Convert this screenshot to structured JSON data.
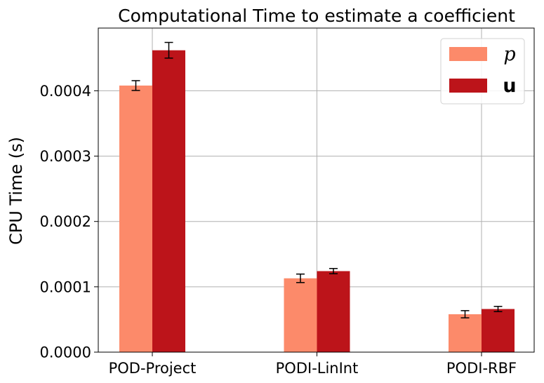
{
  "chart_data": {
    "type": "bar",
    "title": "Computational Time to estimate a coefficient",
    "xlabel": "",
    "ylabel": "CPU Time (s)",
    "categories": [
      "POD-Project",
      "PODI-LinInt",
      "PODI-RBF"
    ],
    "series": [
      {
        "name": "p",
        "color": "#fc8a6a",
        "values": [
          0.000408,
          0.000113,
          5.8e-05
        ],
        "errors": [
          7.5e-06,
          6.5e-06,
          5.5e-06
        ]
      },
      {
        "name": "u",
        "color": "#bc141a",
        "values": [
          0.000462,
          0.000124,
          6.6e-05
        ],
        "errors": [
          1.2e-05,
          4e-06,
          4e-06
        ]
      }
    ],
    "yticks": [
      "0.0000",
      "0.0001",
      "0.0002",
      "0.0003",
      "0.0004"
    ],
    "ytick_values": [
      0,
      0.0001,
      0.0002,
      0.0003,
      0.0004
    ],
    "ylim": [
      0,
      0.000496
    ],
    "grid": true,
    "legend_position": "top-right"
  }
}
